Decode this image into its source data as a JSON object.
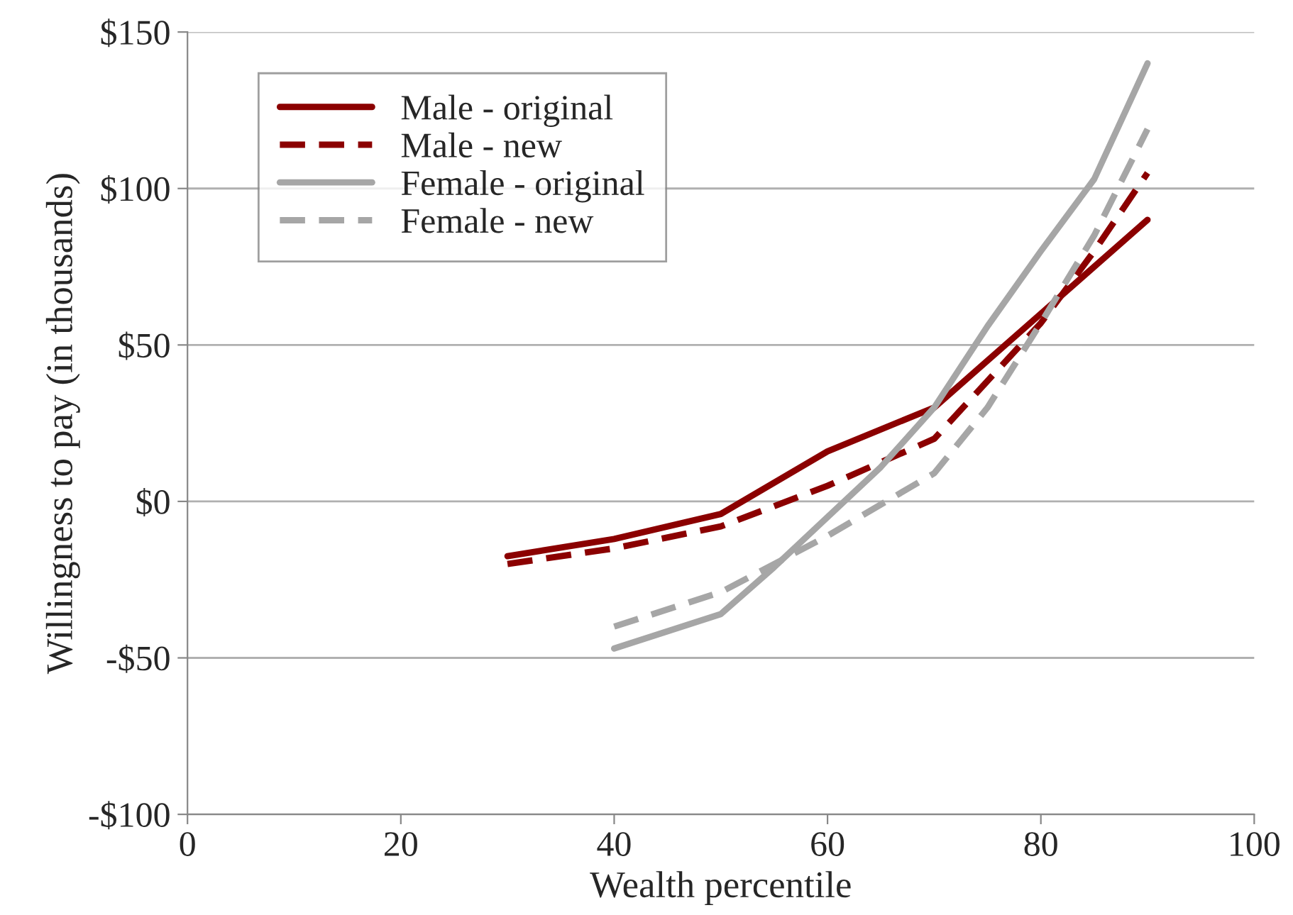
{
  "chart_data": {
    "type": "line",
    "xlabel": "Wealth percentile",
    "ylabel": "Willingness to pay (in thousands)",
    "xlim": [
      0,
      100
    ],
    "xticks": [
      0,
      20,
      40,
      60,
      80,
      100
    ],
    "ylim": [
      -100,
      150
    ],
    "yticks": [
      {
        "value": -100,
        "label": "-$100"
      },
      {
        "value": -50,
        "label": "-$50"
      },
      {
        "value": 0,
        "label": "$0"
      },
      {
        "value": 50,
        "label": "$50"
      },
      {
        "value": 100,
        "label": "$100"
      },
      {
        "value": 150,
        "label": "$150"
      }
    ],
    "grid": "y",
    "legend": "top left",
    "series": [
      {
        "name": "Male - original",
        "color": "#8b0000",
        "line_style": "solid",
        "x": [
          30,
          40,
          50,
          60,
          70,
          80,
          90
        ],
        "values": [
          -17.5,
          -12,
          -4,
          16,
          30,
          60,
          90
        ]
      },
      {
        "name": "Male - new",
        "color": "#8b0000",
        "line_style": "dashed",
        "x": [
          30,
          40,
          50,
          60,
          70,
          80,
          85,
          90
        ],
        "values": [
          -20,
          -15,
          -8,
          5,
          20,
          57,
          80,
          105
        ]
      },
      {
        "name": "Female - original",
        "color": "#a6a6a6",
        "line_style": "solid",
        "x": [
          40,
          50,
          55,
          60,
          65,
          70,
          75,
          80,
          85,
          90
        ],
        "values": [
          -47,
          -36,
          -21,
          -5,
          11,
          30,
          56,
          80,
          103,
          140
        ]
      },
      {
        "name": "Female - new",
        "color": "#a6a6a6",
        "line_style": "dashed",
        "x": [
          40,
          50,
          60,
          70,
          75,
          80,
          85,
          90
        ],
        "values": [
          -40,
          -29,
          -11,
          9,
          30,
          57,
          85,
          119
        ]
      }
    ]
  }
}
